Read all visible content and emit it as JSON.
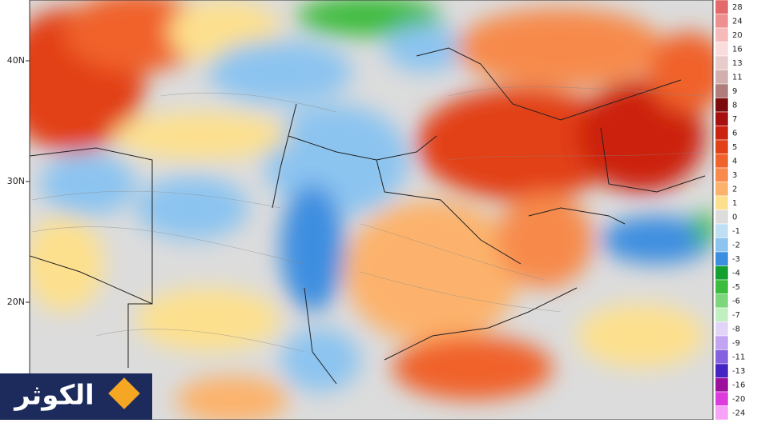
{
  "map": {
    "latitude_labels": [
      "40N",
      "30N",
      "20N"
    ],
    "legend": {
      "levels": [
        28,
        24,
        20,
        16,
        13,
        11,
        9,
        8,
        7,
        6,
        5,
        4,
        3,
        2,
        1,
        0,
        -1,
        -2,
        -3,
        -4,
        -5,
        -6,
        -7,
        -8,
        -9,
        -11,
        -13,
        -16,
        -20,
        -24
      ],
      "colors": [
        "#e46a6a",
        "#ef9090",
        "#f6baba",
        "#fbdcdc",
        "#e8cccc",
        "#d2aeae",
        "#b07c7c",
        "#7c0c0c",
        "#a81010",
        "#cc2010",
        "#e24018",
        "#f0622c",
        "#f78a4c",
        "#fcb26c",
        "#fde08e",
        "#dcdcdc",
        "#bfe0f4",
        "#8cc4f0",
        "#3c8ee0",
        "#14a030",
        "#3cbc3c",
        "#7cd67c",
        "#c0f0c0",
        "#e2d4f8",
        "#c2a4f2",
        "#8462e2",
        "#4424c2",
        "#9c109c",
        "#dc3cdc",
        "#f6a2f6"
      ]
    },
    "logo": {
      "text": "الكوثر"
    }
  }
}
